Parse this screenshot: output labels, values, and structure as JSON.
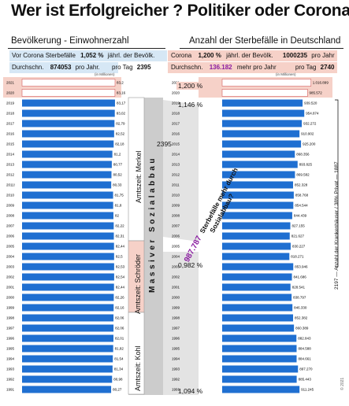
{
  "title": "Wer ist Erfolgreicher ? Politiker oder Corona",
  "left": {
    "heading": "Bevölkerung - Einwohnerzahl",
    "row1": {
      "label": "Vor Corona Sterbefälle",
      "value": "1,052 %",
      "suffix": "jährl. der Bevölk."
    },
    "row2": {
      "label": "Durchschn.",
      "value": "874053",
      "mid": "pro Jahr.",
      "tag_label": "pro Tag",
      "tag_value": "2395"
    },
    "unit": "(in Millionen)"
  },
  "right": {
    "heading": "Anzahl der Sterbefälle in Deutschland",
    "row1": {
      "label": "Corona",
      "value": "1,200 %",
      "mid": "jährl. der Bevölk.",
      "count": "1000235",
      "suffix": "pro Jahr"
    },
    "row2": {
      "label": "Durchschn.",
      "value": "136.182",
      "mid": "mehr pro Jahr",
      "tag_label": "pro Tag",
      "tag_value": "2740"
    },
    "unit": "(in Millionen)"
  },
  "middle": {
    "per_day": "2395",
    "merkel": "Amtszeit: Merkel",
    "schroeder": "Amtszeit: Schröder",
    "kohl": "Amtszeit: Kohl",
    "sozialabbau": "Massiver Sozialabbau",
    "pct_2021": "1,200 %",
    "pct_2019": "1,146 %",
    "pct_2005": "0,982 %",
    "pct_1991": "1,094 %",
    "diff_value": "987.787",
    "diff_text": "Sterbefälle mehr durch",
    "diff_text2": "Sozialabbau?"
  },
  "side_note": {
    "text": "2197 — Anzahl der Krankenhäuser / 38% Privat — 1887"
  },
  "copyright": "© 2021",
  "colors": {
    "bar": "#1f6fd1",
    "pink": "#f6d1c8",
    "blue": "#d6e7f5",
    "band": "#cccccc",
    "purple": "#8a1ca0"
  },
  "chart_data": [
    {
      "type": "bar",
      "orientation": "horizontal",
      "title": "Bevölkerung - Einwohnerzahl",
      "unit": "(in Millionen)",
      "categories": [
        "2021",
        "2020",
        "2019",
        "2018",
        "2017",
        "2016",
        "2015",
        "2014",
        "2013",
        "2012",
        "2011!",
        "2010",
        "2009",
        "2008",
        "2007",
        "2006",
        "2005",
        "2004",
        "2003",
        "2002",
        "2001",
        "2000",
        "1999",
        "1998",
        "1997",
        "1996",
        "1995",
        "1994",
        "1993",
        "1992",
        "1991"
      ],
      "values": [
        83.2,
        83.16,
        83.17,
        83.02,
        82.79,
        82.52,
        82.18,
        81.2,
        80.77,
        80.52,
        80.33,
        81.75,
        81.8,
        82,
        82.22,
        82.31,
        82.44,
        82.5,
        82.53,
        82.54,
        82.44,
        82.26,
        82.16,
        82.06,
        82.06,
        82.01,
        81.82,
        81.54,
        81.34,
        80.98,
        80.27
      ],
      "labels": [
        "83,2",
        "83,16",
        "83,17",
        "83,02",
        "82,79",
        "82,52",
        "82,18",
        "81,2",
        "80,77",
        "80,52",
        "80,33",
        "81,75",
        "81,8",
        "82",
        "82,22",
        "82,31",
        "82,44",
        "82,5",
        "82,53",
        "82,54",
        "82,44",
        "82,26",
        "82,16",
        "82,06",
        "82,06",
        "82,01",
        "81,82",
        "81,54",
        "81,34",
        "80,98",
        "80,27"
      ],
      "xlim": [
        0,
        83.2
      ]
    },
    {
      "type": "bar",
      "orientation": "horizontal",
      "title": "Anzahl der Sterbefälle in Deutschland",
      "unit": "(in Millionen)",
      "categories": [
        "2021",
        "2020",
        "2019",
        "2018",
        "2017",
        "2016",
        "2015",
        "2014",
        "2013",
        "2012",
        "2011",
        "2010",
        "2009",
        "2008",
        "2007",
        "2006",
        "2005",
        "2004",
        "2003",
        "2002",
        "2001",
        "2000",
        "1999",
        "1998",
        "1997",
        "1996",
        "1995",
        "1994",
        "1993",
        "1992",
        "1991"
      ],
      "values": [
        1016899,
        985572,
        939520,
        954874,
        932272,
        910902,
        925200,
        868356,
        893825,
        869582,
        852328,
        858768,
        854544,
        844439,
        827155,
        821627,
        830227,
        818271,
        853946,
        841686,
        828541,
        838797,
        846330,
        852382,
        860389,
        882843,
        884588,
        884661,
        897270,
        885443,
        911245
      ],
      "labels": [
        "1.016.899",
        "985.572",
        "939.520",
        "954.874",
        "932.272",
        "910.902",
        "925.200",
        "868.356",
        "893.825",
        "869.582",
        "852.328",
        "858.768",
        "854.544",
        "844.439",
        "827.155",
        "821.627",
        "830.227",
        "818.271",
        "853.946",
        "841.686",
        "828.541",
        "838.797",
        "846.330",
        "852.382",
        "860.389",
        "882.843",
        "884.588",
        "884.661",
        "897.270",
        "885.443",
        "911.245"
      ],
      "xlim": [
        0,
        1016899
      ]
    }
  ]
}
